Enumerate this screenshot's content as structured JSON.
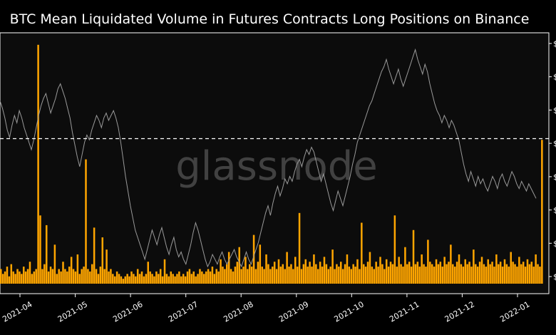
{
  "chart_data": {
    "type": "bar",
    "title": "BTC Mean Liquidated Volume in Futures Contracts Long Positions on Binance",
    "watermark": "glassnode",
    "xlabel": "",
    "ylabel": "",
    "x_tick_labels": [
      "2021-04",
      "2021-05",
      "2021-06",
      "2021-07",
      "2021-08",
      "2021-09",
      "2021-10",
      "2021-11",
      "2021-12",
      "2022-01"
    ],
    "right_axis_tick_labels": [
      "$",
      "$",
      "$",
      "$",
      "$",
      "$",
      "$",
      "$"
    ],
    "bar_color": "#FFA500",
    "price_line_color": "#9a9a9a",
    "reference_line": {
      "value": 5.95,
      "style": "dashed",
      "color": "#ffffff"
    },
    "ylim": [
      0,
      10
    ],
    "series": [
      {
        "values": [
          0.6,
          0.4,
          0.5,
          0.7,
          0.3,
          0.8,
          0.5,
          0.4,
          0.6,
          0.5,
          0.4,
          0.7,
          0.5,
          0.6,
          0.9,
          0.4,
          0.5,
          0.6,
          9.8,
          2.8,
          0.6,
          0.8,
          2.4,
          0.5,
          0.7,
          0.6,
          1.6,
          0.4,
          0.6,
          0.5,
          0.9,
          0.6,
          0.5,
          0.7,
          1.1,
          0.6,
          0.5,
          1.2,
          0.4,
          0.6,
          0.7,
          5.1,
          0.6,
          0.5,
          0.8,
          2.3,
          0.6,
          0.4,
          0.7,
          1.9,
          0.6,
          1.4,
          0.5,
          0.6,
          0.4,
          0.3,
          0.5,
          0.4,
          0.3,
          0.2,
          0.3,
          0.4,
          0.3,
          0.5,
          0.4,
          0.3,
          0.6,
          0.4,
          0.5,
          0.3,
          0.4,
          0.9,
          0.5,
          0.4,
          0.3,
          0.5,
          0.4,
          0.6,
          0.3,
          1.0,
          0.4,
          0.3,
          0.5,
          0.4,
          0.3,
          0.4,
          0.5,
          0.3,
          0.4,
          0.3,
          0.5,
          0.6,
          0.4,
          0.5,
          0.3,
          0.4,
          0.6,
          0.5,
          0.4,
          0.5,
          0.6,
          0.5,
          0.7,
          0.4,
          0.6,
          0.5,
          1.0,
          0.7,
          0.6,
          0.8,
          1.3,
          0.6,
          0.5,
          0.7,
          0.9,
          1.5,
          0.6,
          0.7,
          1.1,
          0.6,
          0.8,
          0.7,
          2.0,
          0.6,
          0.9,
          1.6,
          0.7,
          0.6,
          1.2,
          0.8,
          0.6,
          0.7,
          0.9,
          0.6,
          1.0,
          0.7,
          0.8,
          0.6,
          1.3,
          0.7,
          0.8,
          0.6,
          1.1,
          0.7,
          2.9,
          0.6,
          0.8,
          1.0,
          0.7,
          0.9,
          0.7,
          1.2,
          0.8,
          0.6,
          0.9,
          0.7,
          1.1,
          0.8,
          0.6,
          0.7,
          1.4,
          0.6,
          0.8,
          0.7,
          0.9,
          0.6,
          0.8,
          1.2,
          0.7,
          0.6,
          0.8,
          0.7,
          1.0,
          0.6,
          2.5,
          0.8,
          0.7,
          0.9,
          1.3,
          0.7,
          0.6,
          0.9,
          0.7,
          1.1,
          0.8,
          0.6,
          1.0,
          0.7,
          0.9,
          0.8,
          2.8,
          0.7,
          1.1,
          0.8,
          0.7,
          1.5,
          0.8,
          0.9,
          0.7,
          2.2,
          0.8,
          0.9,
          0.7,
          1.2,
          0.8,
          0.7,
          1.8,
          0.9,
          0.8,
          0.7,
          1.0,
          0.8,
          0.9,
          0.7,
          1.1,
          0.8,
          0.9,
          1.6,
          0.8,
          0.7,
          0.9,
          1.2,
          0.8,
          0.7,
          1.0,
          0.8,
          0.9,
          0.7,
          1.4,
          0.8,
          0.7,
          0.9,
          1.1,
          0.8,
          0.7,
          1.0,
          0.8,
          0.9,
          0.7,
          1.2,
          0.8,
          0.9,
          0.7,
          1.0,
          0.8,
          0.7,
          1.3,
          0.9,
          0.8,
          0.7,
          1.1,
          0.8,
          0.9,
          0.7,
          1.0,
          0.8,
          0.9,
          0.7,
          1.2,
          0.8,
          0.7,
          5.9
        ]
      }
    ],
    "price_overlay": {
      "values": [
        7.5,
        7.2,
        6.8,
        6.3,
        6.0,
        6.5,
        6.9,
        6.6,
        7.1,
        6.8,
        6.4,
        6.1,
        5.8,
        5.5,
        5.9,
        6.4,
        6.9,
        7.3,
        7.6,
        7.8,
        7.4,
        7.0,
        7.3,
        7.6,
        8.0,
        8.2,
        7.9,
        7.6,
        7.2,
        6.8,
        6.2,
        5.7,
        5.2,
        4.8,
        5.3,
        5.8,
        6.1,
        5.9,
        6.3,
        6.6,
        6.9,
        6.7,
        6.4,
        6.8,
        7.0,
        6.7,
        6.9,
        7.1,
        6.8,
        6.4,
        5.8,
        5.1,
        4.4,
        3.8,
        3.2,
        2.7,
        2.2,
        1.9,
        1.6,
        1.3,
        1.0,
        1.4,
        1.8,
        2.2,
        1.9,
        1.6,
        2.0,
        2.3,
        1.9,
        1.5,
        1.2,
        1.6,
        1.9,
        1.4,
        1.1,
        1.3,
        1.0,
        0.8,
        1.2,
        1.6,
        2.1,
        2.5,
        2.2,
        1.8,
        1.4,
        1.0,
        0.7,
        0.9,
        1.2,
        1.0,
        0.8,
        1.1,
        1.3,
        1.0,
        0.8,
        1.0,
        1.2,
        1.4,
        1.1,
        0.9,
        0.7,
        1.0,
        1.3,
        1.0,
        0.8,
        1.1,
        1.4,
        1.7,
        2.1,
        2.5,
        2.9,
        3.2,
        2.8,
        3.3,
        3.7,
        4.0,
        3.6,
        3.9,
        4.3,
        4.1,
        4.4,
        4.2,
        4.6,
        4.9,
        5.1,
        4.8,
        5.2,
        5.5,
        5.3,
        5.6,
        5.4,
        5.0,
        4.6,
        4.2,
        4.5,
        4.1,
        3.7,
        3.3,
        3.0,
        3.4,
        3.8,
        3.5,
        3.2,
        3.6,
        4.0,
        4.4,
        4.9,
        5.3,
        5.8,
        6.1,
        6.4,
        6.7,
        7.0,
        7.3,
        7.5,
        7.8,
        8.1,
        8.4,
        8.7,
        8.9,
        9.2,
        8.8,
        8.5,
        8.2,
        8.5,
        8.8,
        8.4,
        8.1,
        8.4,
        8.7,
        9.0,
        9.3,
        9.6,
        9.2,
        8.9,
        8.6,
        9.0,
        8.7,
        8.2,
        7.8,
        7.4,
        7.1,
        6.9,
        6.6,
        6.9,
        6.7,
        6.4,
        6.7,
        6.5,
        6.2,
        5.9,
        5.4,
        4.9,
        4.5,
        4.2,
        4.6,
        4.3,
        4.0,
        4.4,
        4.1,
        4.3,
        4.0,
        3.8,
        4.1,
        4.4,
        4.2,
        3.9,
        4.3,
        4.5,
        4.2,
        4.0,
        4.3,
        4.6,
        4.4,
        4.1,
        3.9,
        4.2,
        4.0,
        3.8,
        4.1,
        3.9,
        3.7,
        3.5
      ]
    }
  }
}
